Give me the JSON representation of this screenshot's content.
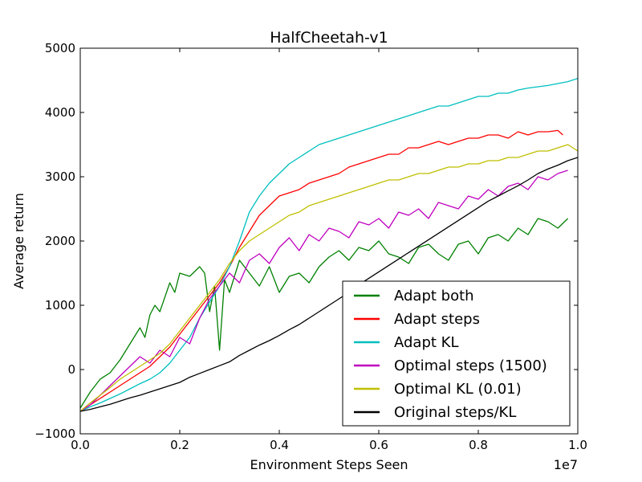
{
  "chart_data": {
    "type": "line",
    "title": "HalfCheetah-v1",
    "xlabel": "Environment Steps Seen",
    "ylabel": "Average return",
    "x_multiplier_label": "1e7",
    "xlim": [
      0.0,
      1.0
    ],
    "ylim": [
      -1000,
      5000
    ],
    "xticks": [
      0.0,
      0.2,
      0.4,
      0.6,
      0.8,
      1.0
    ],
    "xtick_labels": [
      "0.0",
      "0.2",
      "0.4",
      "0.6",
      "0.8",
      "1.0"
    ],
    "yticks": [
      -1000,
      0,
      1000,
      2000,
      3000,
      4000,
      5000
    ],
    "ytick_labels": [
      "−1000",
      "0",
      "1000",
      "2000",
      "3000",
      "4000",
      "5000"
    ],
    "grid": false,
    "legend_position": "lower-right",
    "series": [
      {
        "name": "Adapt both",
        "color": "#008000",
        "x": [
          0.0,
          0.02,
          0.04,
          0.06,
          0.08,
          0.1,
          0.12,
          0.13,
          0.14,
          0.15,
          0.16,
          0.18,
          0.19,
          0.2,
          0.22,
          0.24,
          0.25,
          0.26,
          0.27,
          0.28,
          0.29,
          0.3,
          0.32,
          0.34,
          0.36,
          0.38,
          0.4,
          0.42,
          0.44,
          0.46,
          0.48,
          0.5,
          0.52,
          0.54,
          0.56,
          0.58,
          0.6,
          0.62,
          0.64,
          0.66,
          0.68,
          0.7,
          0.72,
          0.74,
          0.76,
          0.78,
          0.8,
          0.82,
          0.84,
          0.86,
          0.88,
          0.9,
          0.92,
          0.94,
          0.96,
          0.98
        ],
        "y": [
          -600,
          -350,
          -150,
          -50,
          150,
          400,
          650,
          500,
          850,
          1000,
          900,
          1350,
          1200,
          1500,
          1450,
          1600,
          1500,
          900,
          1300,
          300,
          1400,
          1200,
          1700,
          1500,
          1300,
          1600,
          1200,
          1450,
          1500,
          1350,
          1600,
          1750,
          1850,
          1700,
          1900,
          1850,
          2000,
          1800,
          1750,
          1650,
          1900,
          1950,
          1800,
          1700,
          1950,
          2000,
          1800,
          2050,
          2100,
          2000,
          2200,
          2100,
          2350,
          2300,
          2200,
          2350
        ]
      },
      {
        "name": "Adapt steps",
        "color": "#ff0000",
        "x": [
          0.0,
          0.02,
          0.04,
          0.06,
          0.08,
          0.1,
          0.12,
          0.14,
          0.16,
          0.18,
          0.2,
          0.22,
          0.24,
          0.26,
          0.28,
          0.3,
          0.32,
          0.34,
          0.36,
          0.38,
          0.4,
          0.42,
          0.44,
          0.46,
          0.48,
          0.5,
          0.52,
          0.54,
          0.56,
          0.58,
          0.6,
          0.62,
          0.64,
          0.66,
          0.68,
          0.7,
          0.72,
          0.74,
          0.76,
          0.78,
          0.8,
          0.82,
          0.84,
          0.86,
          0.88,
          0.9,
          0.92,
          0.94,
          0.96,
          0.97
        ],
        "y": [
          -650,
          -550,
          -450,
          -350,
          -250,
          -150,
          -50,
          50,
          200,
          350,
          550,
          750,
          950,
          1150,
          1350,
          1600,
          1900,
          2150,
          2400,
          2550,
          2700,
          2750,
          2800,
          2900,
          2950,
          3000,
          3050,
          3150,
          3200,
          3250,
          3300,
          3350,
          3350,
          3450,
          3450,
          3500,
          3550,
          3500,
          3550,
          3600,
          3600,
          3650,
          3650,
          3600,
          3700,
          3650,
          3700,
          3700,
          3720,
          3650
        ]
      },
      {
        "name": "Adapt KL",
        "color": "#00bfbf",
        "x": [
          0.0,
          0.02,
          0.04,
          0.06,
          0.08,
          0.1,
          0.12,
          0.14,
          0.16,
          0.18,
          0.2,
          0.22,
          0.24,
          0.26,
          0.28,
          0.3,
          0.32,
          0.34,
          0.36,
          0.38,
          0.4,
          0.42,
          0.44,
          0.46,
          0.48,
          0.5,
          0.52,
          0.54,
          0.56,
          0.58,
          0.6,
          0.62,
          0.64,
          0.66,
          0.68,
          0.7,
          0.72,
          0.74,
          0.76,
          0.78,
          0.8,
          0.82,
          0.84,
          0.86,
          0.88,
          0.9,
          0.92,
          0.94,
          0.96,
          0.98,
          1.0
        ],
        "y": [
          -650,
          -580,
          -520,
          -450,
          -380,
          -300,
          -220,
          -150,
          -50,
          100,
          300,
          500,
          800,
          1050,
          1300,
          1600,
          2000,
          2450,
          2700,
          2900,
          3050,
          3200,
          3300,
          3400,
          3500,
          3550,
          3600,
          3650,
          3700,
          3750,
          3800,
          3850,
          3900,
          3950,
          4000,
          4050,
          4100,
          4100,
          4150,
          4200,
          4250,
          4250,
          4300,
          4300,
          4350,
          4380,
          4400,
          4420,
          4450,
          4480,
          4530
        ]
      },
      {
        "name": "Optimal steps (1500)",
        "color": "#bf00bf",
        "x": [
          0.0,
          0.02,
          0.04,
          0.06,
          0.08,
          0.1,
          0.12,
          0.14,
          0.16,
          0.18,
          0.2,
          0.22,
          0.24,
          0.26,
          0.28,
          0.3,
          0.32,
          0.34,
          0.36,
          0.38,
          0.4,
          0.42,
          0.44,
          0.46,
          0.48,
          0.5,
          0.52,
          0.54,
          0.56,
          0.58,
          0.6,
          0.62,
          0.64,
          0.66,
          0.68,
          0.7,
          0.72,
          0.74,
          0.76,
          0.78,
          0.8,
          0.82,
          0.84,
          0.86,
          0.88,
          0.9,
          0.92,
          0.94,
          0.96,
          0.98
        ],
        "y": [
          -650,
          -550,
          -400,
          -250,
          -100,
          50,
          200,
          100,
          300,
          200,
          500,
          400,
          800,
          1100,
          1300,
          1500,
          1350,
          1700,
          1800,
          1650,
          1900,
          2050,
          1850,
          2100,
          2000,
          2200,
          2150,
          2050,
          2300,
          2250,
          2350,
          2200,
          2450,
          2400,
          2500,
          2350,
          2600,
          2550,
          2500,
          2700,
          2650,
          2800,
          2700,
          2850,
          2900,
          2800,
          3000,
          2950,
          3050,
          3100
        ]
      },
      {
        "name": "Optimal KL (0.01)",
        "color": "#bfbf00",
        "x": [
          0.0,
          0.02,
          0.04,
          0.06,
          0.08,
          0.1,
          0.12,
          0.14,
          0.16,
          0.18,
          0.2,
          0.22,
          0.24,
          0.26,
          0.28,
          0.3,
          0.32,
          0.34,
          0.36,
          0.38,
          0.4,
          0.42,
          0.44,
          0.46,
          0.48,
          0.5,
          0.52,
          0.54,
          0.56,
          0.58,
          0.6,
          0.62,
          0.64,
          0.66,
          0.68,
          0.7,
          0.72,
          0.74,
          0.76,
          0.78,
          0.8,
          0.82,
          0.84,
          0.86,
          0.88,
          0.9,
          0.92,
          0.94,
          0.96,
          0.98,
          1.0
        ],
        "y": [
          -650,
          -520,
          -400,
          -280,
          -150,
          -50,
          50,
          150,
          250,
          400,
          600,
          800,
          1000,
          1200,
          1400,
          1650,
          1850,
          2000,
          2100,
          2200,
          2300,
          2400,
          2450,
          2550,
          2600,
          2650,
          2700,
          2750,
          2800,
          2850,
          2900,
          2950,
          2950,
          3000,
          3050,
          3050,
          3100,
          3150,
          3150,
          3200,
          3200,
          3250,
          3250,
          3300,
          3300,
          3350,
          3400,
          3400,
          3450,
          3500,
          3400
        ]
      },
      {
        "name": "Original steps/KL",
        "color": "#000000",
        "x": [
          0.0,
          0.02,
          0.04,
          0.06,
          0.08,
          0.1,
          0.12,
          0.14,
          0.16,
          0.18,
          0.2,
          0.22,
          0.24,
          0.26,
          0.28,
          0.3,
          0.32,
          0.34,
          0.36,
          0.38,
          0.4,
          0.42,
          0.44,
          0.46,
          0.48,
          0.5,
          0.52,
          0.54,
          0.56,
          0.58,
          0.6,
          0.62,
          0.64,
          0.66,
          0.68,
          0.7,
          0.72,
          0.74,
          0.76,
          0.78,
          0.8,
          0.82,
          0.84,
          0.86,
          0.88,
          0.9,
          0.92,
          0.94,
          0.96,
          0.98,
          1.0
        ],
        "y": [
          -650,
          -620,
          -580,
          -540,
          -490,
          -440,
          -400,
          -350,
          -300,
          -250,
          -200,
          -120,
          -60,
          0,
          60,
          120,
          220,
          300,
          380,
          450,
          530,
          620,
          700,
          800,
          900,
          1000,
          1100,
          1200,
          1320,
          1420,
          1520,
          1620,
          1720,
          1820,
          1920,
          2020,
          2120,
          2220,
          2320,
          2420,
          2520,
          2620,
          2700,
          2780,
          2860,
          2950,
          3050,
          3120,
          3180,
          3250,
          3300
        ]
      }
    ]
  }
}
